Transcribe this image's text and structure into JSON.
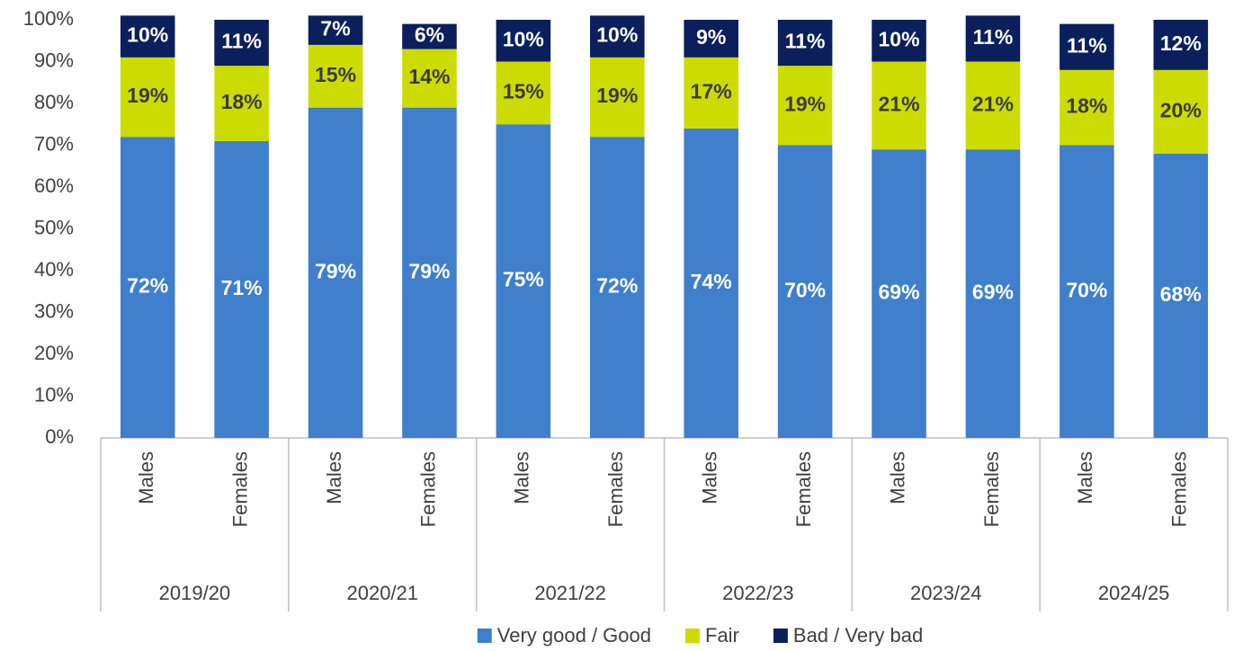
{
  "chart_data": {
    "type": "stacked_bar",
    "categories": [
      "Males",
      "Females",
      "Males",
      "Females",
      "Males",
      "Females",
      "Males",
      "Females",
      "Males",
      "Females",
      "Males",
      "Females"
    ],
    "groups": [
      "2019/20",
      "2020/21",
      "2021/22",
      "2022/23",
      "2023/24",
      "2024/25"
    ],
    "series": [
      {
        "name": "Very good / Good",
        "color": "#3f7fcb",
        "label_color": "#ffffff",
        "values": [
          72,
          71,
          79,
          79,
          75,
          72,
          74,
          70,
          69,
          69,
          70,
          68
        ],
        "value_labels": [
          "72%",
          "71%",
          "79%",
          "79%",
          "75%",
          "72%",
          "74%",
          "70%",
          "69%",
          "69%",
          "70%",
          "68%"
        ]
      },
      {
        "name": "Fair",
        "color": "#cddc00",
        "label_color": "#3a3a3a",
        "values": [
          19,
          18,
          15,
          14,
          15,
          19,
          17,
          19,
          21,
          21,
          18,
          20
        ],
        "value_labels": [
          "19%",
          "18%",
          "15%",
          "14%",
          "15%",
          "19%",
          "17%",
          "19%",
          "21%",
          "21%",
          "18%",
          "20%"
        ]
      },
      {
        "name": "Bad / Very bad",
        "color": "#0a1f5c",
        "label_color": "#ffffff",
        "values": [
          10,
          11,
          7,
          6,
          10,
          10,
          9,
          11,
          10,
          11,
          11,
          12
        ],
        "value_labels": [
          "10%",
          "11%",
          "7%",
          "6%",
          "10%",
          "10%",
          "9%",
          "11%",
          "10%",
          "11%",
          "11%",
          "12%"
        ]
      }
    ],
    "ylim": [
      0,
      100
    ],
    "yticks": [
      {
        "value": 0,
        "label": "0%"
      },
      {
        "value": 10,
        "label": "10%"
      },
      {
        "value": 20,
        "label": "20%"
      },
      {
        "value": 30,
        "label": "30%"
      },
      {
        "value": 40,
        "label": "40%"
      },
      {
        "value": 50,
        "label": "50%"
      },
      {
        "value": 60,
        "label": "60%"
      },
      {
        "value": 70,
        "label": "70%"
      },
      {
        "value": 80,
        "label": "80%"
      },
      {
        "value": 90,
        "label": "90%"
      },
      {
        "value": 100,
        "label": "100%"
      }
    ],
    "grid": false,
    "legend": "bottom"
  }
}
